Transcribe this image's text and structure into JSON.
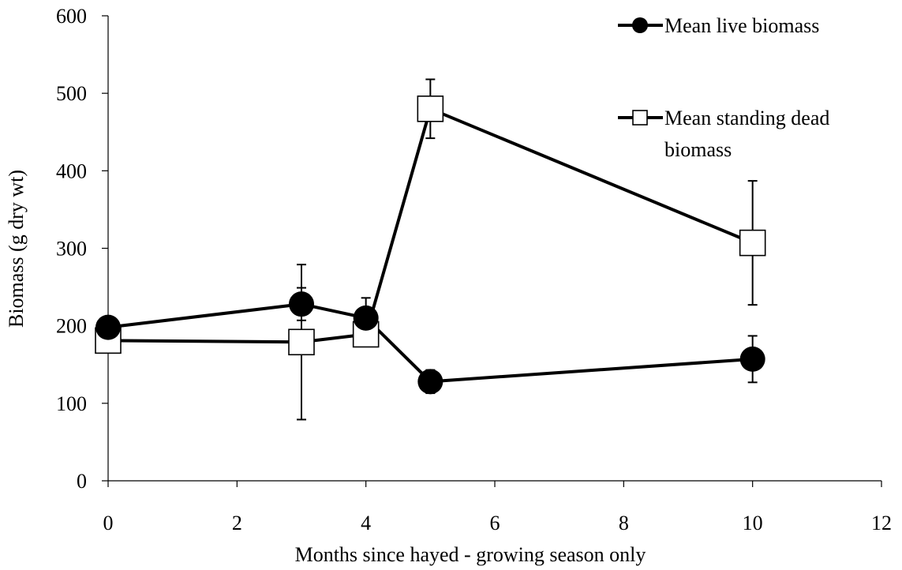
{
  "chart_data": {
    "type": "line",
    "title": "",
    "xlabel": "Months since hayed - growing season only",
    "ylabel": "Biomass (g dry wt)",
    "xlim": [
      0,
      12
    ],
    "ylim": [
      0,
      600
    ],
    "xticks": [
      0,
      2,
      4,
      6,
      8,
      10,
      12
    ],
    "yticks": [
      0,
      100,
      200,
      300,
      400,
      500,
      600
    ],
    "grid": false,
    "legend_position": "top-right",
    "series": [
      {
        "name": "Mean live biomass",
        "marker": "filled-circle",
        "color": "#000000",
        "x": [
          0,
          3,
          4,
          5,
          10
        ],
        "y": [
          198,
          228,
          210,
          128,
          157
        ],
        "error": [
          null,
          21,
          26,
          15,
          30
        ]
      },
      {
        "name": "Mean standing dead biomass",
        "legend_lines": [
          "Mean standing dead",
          "biomass"
        ],
        "marker": "open-square",
        "color": "#000000",
        "x": [
          0,
          3,
          4,
          5,
          10
        ],
        "y": [
          181,
          179,
          189,
          480,
          307
        ],
        "error": [
          9,
          100,
          10,
          38,
          80
        ]
      }
    ]
  }
}
